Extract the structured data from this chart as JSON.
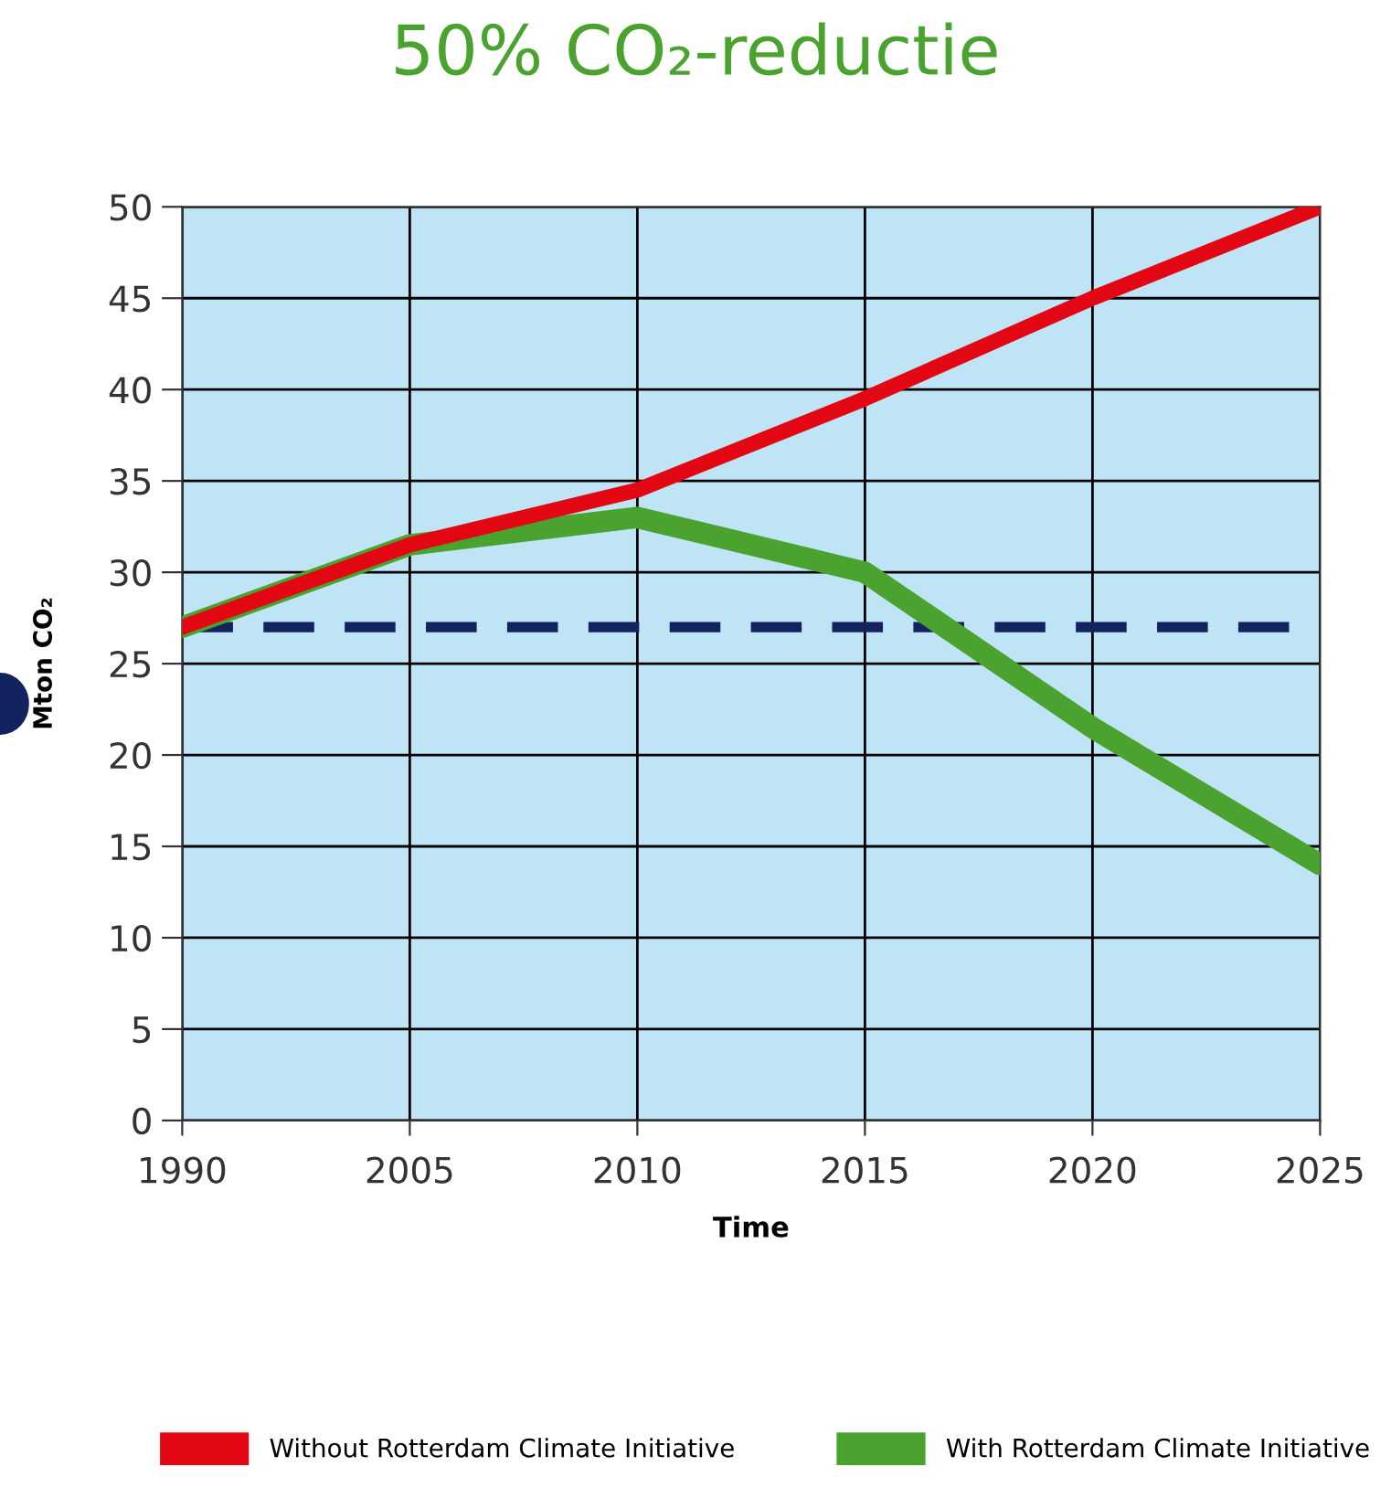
{
  "chart_data": {
    "type": "line",
    "title": "50% CO₂-reductie",
    "xlabel": "Time",
    "ylabel": "Mton CO₂",
    "categories": [
      "1990",
      "2005",
      "2010",
      "2015",
      "2020",
      "2025"
    ],
    "series": [
      {
        "name": "Without Rotterdam Climate Initiative",
        "color": "#e30613",
        "values": [
          27,
          31.5,
          34.5,
          39.5,
          45,
          50
        ]
      },
      {
        "name": "With Rotterdam Climate Initiative",
        "color": "#4aa32e",
        "values": [
          27,
          31.5,
          33,
          30,
          21.5,
          14
        ]
      }
    ],
    "ylim": [
      0,
      50
    ],
    "yticks": [
      0,
      5,
      10,
      15,
      20,
      25,
      30,
      35,
      40,
      45,
      50
    ],
    "ref_lines": [
      {
        "axis": "y",
        "value": 27,
        "color": "#13235f",
        "line_style": "dashed"
      }
    ],
    "grid": true,
    "legend": "bottom",
    "marker": "none",
    "line_style": "solid"
  }
}
